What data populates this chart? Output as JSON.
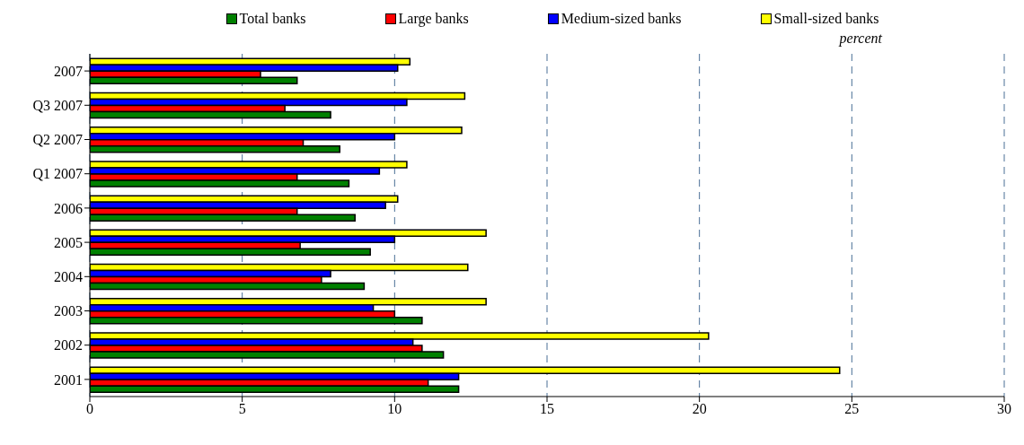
{
  "chart_data": {
    "type": "bar",
    "orientation": "horizontal",
    "categories": [
      "2007",
      "Q3 2007",
      "Q2 2007",
      "Q1 2007",
      "2006",
      "2005",
      "2004",
      "2003",
      "2002",
      "2001"
    ],
    "series": [
      {
        "name": "Total banks",
        "color": "#008000",
        "values": [
          6.8,
          7.9,
          8.2,
          8.5,
          8.7,
          9.2,
          9.0,
          10.9,
          11.6,
          12.1
        ]
      },
      {
        "name": "Large banks",
        "color": "#ff0000",
        "values": [
          5.6,
          6.4,
          7.0,
          6.8,
          6.8,
          6.9,
          7.6,
          10.0,
          10.9,
          11.1
        ]
      },
      {
        "name": "Medium-sized banks",
        "color": "#0000ff",
        "values": [
          10.1,
          10.4,
          10.0,
          9.5,
          9.7,
          10.0,
          7.9,
          9.3,
          10.6,
          12.1
        ]
      },
      {
        "name": "Small-sized banks",
        "color": "#ffff00",
        "values": [
          10.5,
          12.3,
          12.2,
          10.4,
          10.1,
          13.0,
          12.4,
          13.0,
          20.3,
          24.6
        ]
      }
    ],
    "xlim": [
      0,
      30
    ],
    "xticks": [
      0,
      5,
      10,
      15,
      20,
      25,
      30
    ],
    "grid": "x",
    "legend": "top",
    "annotations": [
      "percent"
    ]
  }
}
